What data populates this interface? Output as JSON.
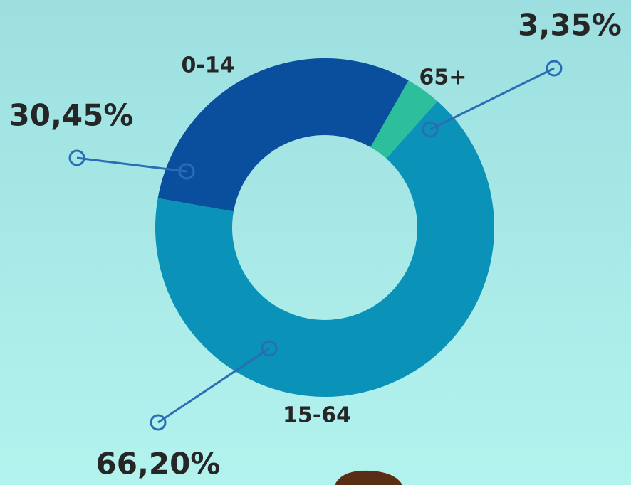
{
  "chart_data": {
    "type": "pie",
    "categories": [
      "0-14",
      "65+",
      "15-64"
    ],
    "values": [
      30.45,
      3.35,
      66.2
    ],
    "value_labels": [
      "30,45%",
      "3,35%",
      "66,20%"
    ],
    "colors": [
      "#0a4f9e",
      "#2dbf9c",
      "#0a92b8"
    ],
    "donut": true
  }
}
